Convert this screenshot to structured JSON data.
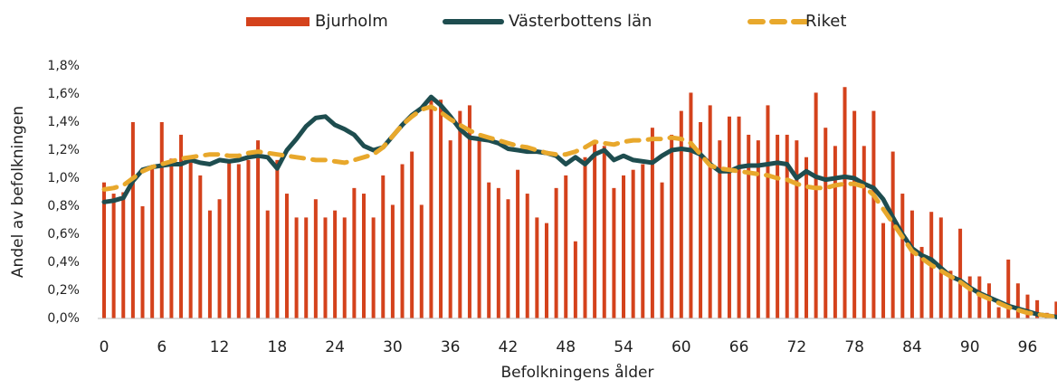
{
  "chart_data": {
    "type": "bar",
    "x_label": "Befolkningens ålder",
    "y_label": "Andel av befolkningen",
    "categories": [
      "0",
      null,
      null,
      null,
      null,
      null,
      "6",
      null,
      null,
      null,
      null,
      null,
      "12",
      null,
      null,
      null,
      null,
      null,
      "18",
      null,
      null,
      null,
      null,
      null,
      "24",
      null,
      null,
      null,
      null,
      null,
      "30",
      null,
      null,
      null,
      null,
      null,
      "36",
      null,
      null,
      null,
      null,
      null,
      "42",
      null,
      null,
      null,
      null,
      null,
      "48",
      null,
      null,
      null,
      null,
      null,
      "54",
      null,
      null,
      null,
      null,
      null,
      "60",
      null,
      null,
      null,
      null,
      null,
      "66",
      null,
      null,
      null,
      null,
      null,
      "72",
      null,
      null,
      null,
      null,
      null,
      "78",
      null,
      null,
      null,
      null,
      null,
      "84",
      null,
      null,
      null,
      null,
      null,
      "90",
      null,
      null,
      null,
      null,
      null,
      "96",
      null,
      null,
      null
    ],
    "ylim": [
      0,
      1.8
    ],
    "yticks": [
      {
        "value": 0,
        "label": "0,0%"
      },
      {
        "value": 0.2,
        "label": "0,2%"
      },
      {
        "value": 0.4,
        "label": "0,4%"
      },
      {
        "value": 0.6,
        "label": "0,6%"
      },
      {
        "value": 0.8,
        "label": "0,8%"
      },
      {
        "value": 1,
        "label": "1,0%"
      },
      {
        "value": 1.2,
        "label": "1,2%"
      },
      {
        "value": 1.4,
        "label": "1,4%"
      },
      {
        "value": 1.6,
        "label": "1,6%"
      },
      {
        "value": 1.8,
        "label": "1,8%"
      }
    ],
    "legend": "top",
    "series": [
      {
        "name": "Bjurholm",
        "type": "bar",
        "color": "#d4421c",
        "values": [
          0.97,
          0.89,
          0.9,
          1.4,
          0.8,
          1.08,
          1.4,
          1.14,
          1.31,
          1.15,
          1.02,
          0.77,
          0.85,
          1.12,
          1.1,
          1.13,
          1.27,
          0.77,
          1.13,
          0.89,
          0.72,
          0.72,
          0.85,
          0.72,
          0.77,
          0.72,
          0.93,
          0.89,
          0.72,
          1.02,
          0.81,
          1.1,
          1.19,
          0.81,
          1.57,
          1.56,
          1.27,
          1.48,
          1.52,
          1.27,
          0.97,
          0.93,
          0.85,
          1.06,
          0.89,
          0.72,
          0.68,
          0.93,
          1.02,
          0.55,
          1.15,
          1.27,
          1.23,
          0.93,
          1.02,
          1.06,
          1.1,
          1.36,
          0.97,
          1.31,
          1.48,
          1.61,
          1.4,
          1.52,
          1.27,
          1.44,
          1.44,
          1.31,
          1.27,
          1.52,
          1.31,
          1.31,
          1.27,
          1.15,
          1.61,
          1.36,
          1.23,
          1.65,
          1.48,
          1.23,
          1.48,
          0.68,
          1.19,
          0.89,
          0.77,
          0.51,
          0.76,
          0.72,
          0.34,
          0.64,
          0.3,
          0.3,
          0.25,
          0.08,
          0.42,
          0.25,
          0.17,
          0.13,
          0.04,
          0.12
        ]
      },
      {
        "name": "Västerbottens län",
        "type": "line",
        "color": "#1e4d4f",
        "values": [
          0.83,
          0.84,
          0.86,
          0.98,
          1.06,
          1.08,
          1.09,
          1.1,
          1.1,
          1.13,
          1.11,
          1.1,
          1.13,
          1.12,
          1.13,
          1.15,
          1.16,
          1.15,
          1.07,
          1.2,
          1.28,
          1.37,
          1.43,
          1.44,
          1.38,
          1.35,
          1.31,
          1.23,
          1.2,
          1.22,
          1.3,
          1.38,
          1.45,
          1.5,
          1.58,
          1.52,
          1.44,
          1.35,
          1.29,
          1.28,
          1.27,
          1.25,
          1.21,
          1.2,
          1.19,
          1.19,
          1.18,
          1.16,
          1.1,
          1.15,
          1.1,
          1.17,
          1.2,
          1.13,
          1.16,
          1.13,
          1.12,
          1.11,
          1.16,
          1.2,
          1.21,
          1.2,
          1.17,
          1.1,
          1.05,
          1.05,
          1.08,
          1.09,
          1.09,
          1.1,
          1.11,
          1.1,
          1.0,
          1.05,
          1.01,
          0.99,
          1.0,
          1.01,
          1.0,
          0.96,
          0.93,
          0.85,
          0.72,
          0.6,
          0.5,
          0.45,
          0.42,
          0.36,
          0.3,
          0.27,
          0.22,
          0.18,
          0.15,
          0.12,
          0.09,
          0.07,
          0.05,
          0.03,
          0.02,
          0.01
        ]
      },
      {
        "name": "Riket",
        "type": "line",
        "dashed": true,
        "color": "#e8a82c",
        "values": [
          0.92,
          0.93,
          0.95,
          1.0,
          1.05,
          1.08,
          1.1,
          1.12,
          1.14,
          1.15,
          1.16,
          1.17,
          1.17,
          1.16,
          1.16,
          1.18,
          1.19,
          1.18,
          1.17,
          1.16,
          1.15,
          1.14,
          1.13,
          1.13,
          1.12,
          1.11,
          1.13,
          1.15,
          1.17,
          1.22,
          1.3,
          1.38,
          1.44,
          1.49,
          1.51,
          1.47,
          1.42,
          1.38,
          1.34,
          1.31,
          1.29,
          1.27,
          1.25,
          1.23,
          1.22,
          1.2,
          1.18,
          1.17,
          1.17,
          1.19,
          1.22,
          1.26,
          1.25,
          1.24,
          1.26,
          1.27,
          1.27,
          1.28,
          1.28,
          1.29,
          1.28,
          1.25,
          1.17,
          1.09,
          1.07,
          1.06,
          1.05,
          1.04,
          1.03,
          1.02,
          1.0,
          0.99,
          0.96,
          0.94,
          0.93,
          0.93,
          0.95,
          0.96,
          0.96,
          0.94,
          0.88,
          0.78,
          0.68,
          0.58,
          0.48,
          0.43,
          0.38,
          0.34,
          0.3,
          0.26,
          0.21,
          0.17,
          0.14,
          0.11,
          0.08,
          0.06,
          0.04,
          0.03,
          0.02,
          0.01
        ]
      }
    ]
  }
}
